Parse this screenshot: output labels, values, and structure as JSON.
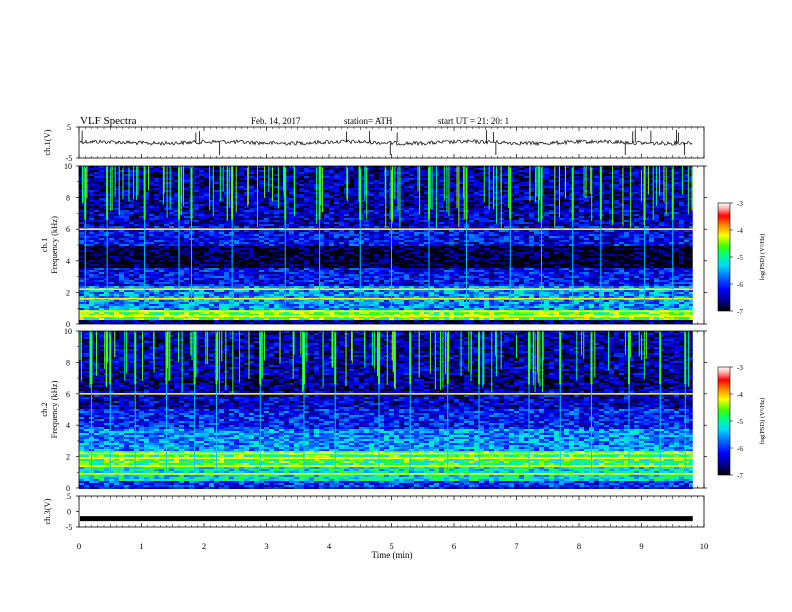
{
  "header": {
    "title": "VLF  Spectra",
    "date": "Feb. 14, 2017",
    "station": "station= ATH",
    "start": "start  UT  =    21: 20: 1"
  },
  "colors": {
    "spectrum": [
      "#000000",
      "#00007a",
      "#0000ff",
      "#0060ff",
      "#00c8ff",
      "#00ffd8",
      "#00ff40",
      "#9cff00",
      "#ffff00",
      "#ff8000",
      "#ff0000",
      "#ffb0b0",
      "#ffffff"
    ],
    "trace": "#000000",
    "axis": "#000000"
  },
  "chart_data": [
    {
      "type": "line",
      "name": "ch1-waveform",
      "ylabel": "ch.1(V)",
      "ylim": [
        -5,
        5
      ],
      "yticks": [
        "5",
        "-5"
      ],
      "xlim": [
        0,
        10
      ],
      "baseline": 0,
      "spike_times": [
        0.05,
        1.87,
        1.93,
        2.25,
        4.28,
        4.65,
        4.98,
        5.09,
        6.52,
        6.63,
        6.67,
        8.74,
        8.86,
        8.9,
        9.15,
        9.56,
        9.59,
        9.69
      ]
    },
    {
      "type": "heatmap",
      "name": "ch1-spectrogram",
      "ylabel_channel": "ch.1",
      "ylabel": "Frequency (kHz)",
      "ylim": [
        0,
        10
      ],
      "yticks": [
        "0",
        "2",
        "4",
        "6",
        "8",
        "10"
      ],
      "xlim": [
        0,
        9.82
      ],
      "colorbar": {
        "label": "log(PSD) (V²/Hz)",
        "range": [
          -7,
          -3
        ],
        "ticks": [
          "-3",
          "-4",
          "-5",
          "-6",
          "-7"
        ]
      },
      "bands_khz": [
        {
          "from": 0,
          "to": 0.3,
          "level": -6.6
        },
        {
          "from": 0.3,
          "to": 0.9,
          "level": -4.6
        },
        {
          "from": 0.9,
          "to": 2.4,
          "level": -5.6
        },
        {
          "from": 2.4,
          "to": 3.6,
          "level": -6.2
        },
        {
          "from": 3.6,
          "to": 5.0,
          "level": -6.9
        },
        {
          "from": 5.0,
          "to": 6.2,
          "level": -6.2
        },
        {
          "from": 6.2,
          "to": 7.2,
          "level": -6.4
        },
        {
          "from": 7.2,
          "to": 10.0,
          "level": -6.5
        }
      ],
      "tone_lines_khz": [
        6.0,
        2.2,
        1.6,
        0.8,
        0.5
      ],
      "sferic_times": [
        0.1,
        0.45,
        1.05,
        1.6,
        1.8,
        2.45,
        3.3,
        3.85,
        4.5,
        5.0,
        5.6,
        6.2,
        6.9,
        7.4,
        7.9,
        8.35,
        9.05,
        9.5
      ]
    },
    {
      "type": "heatmap",
      "name": "ch2-spectrogram",
      "ylabel_channel": "ch.2",
      "ylabel": "Frequency (kHz)",
      "ylim": [
        0,
        10
      ],
      "yticks": [
        "0",
        "2",
        "4",
        "6",
        "8",
        "10"
      ],
      "xlim": [
        0,
        9.82
      ],
      "colorbar": {
        "label": "log(PSD) (V²/Hz)",
        "range": [
          -7,
          -3
        ],
        "ticks": [
          "-3",
          "-4",
          "-5",
          "-6",
          "-7"
        ]
      },
      "bands_khz": [
        {
          "from": 0,
          "to": 0.4,
          "level": -6.0
        },
        {
          "from": 0.4,
          "to": 1.3,
          "level": -5.2
        },
        {
          "from": 1.3,
          "to": 2.3,
          "level": -4.8
        },
        {
          "from": 2.3,
          "to": 3.8,
          "level": -5.6
        },
        {
          "from": 3.8,
          "to": 5.0,
          "level": -6.1
        },
        {
          "from": 5.0,
          "to": 6.2,
          "level": -6.4
        },
        {
          "from": 6.2,
          "to": 7.2,
          "level": -6.6
        },
        {
          "from": 7.2,
          "to": 10.0,
          "level": -6.5
        }
      ],
      "tone_lines_khz": [
        6.0,
        2.2,
        1.9,
        1.4,
        0.9
      ],
      "sferic_times": [
        0.2,
        0.5,
        0.9,
        1.4,
        1.85,
        2.2,
        2.9,
        3.6,
        4.1,
        4.8,
        5.3,
        5.9,
        6.4,
        7.2,
        7.7,
        8.2,
        8.8,
        9.3,
        9.7
      ]
    },
    {
      "type": "line",
      "name": "ch3-waveform",
      "ylabel": "ch.3(V)",
      "ylim": [
        -5,
        5
      ],
      "yticks": [
        "5",
        "0",
        "-5"
      ],
      "xlim": [
        0,
        10
      ],
      "baseline": -2.3
    }
  ],
  "time_axis": {
    "label": "Time  (min)",
    "ticks": [
      "0",
      "1",
      "2",
      "3",
      "4",
      "5",
      "6",
      "7",
      "8",
      "9",
      "10"
    ]
  }
}
